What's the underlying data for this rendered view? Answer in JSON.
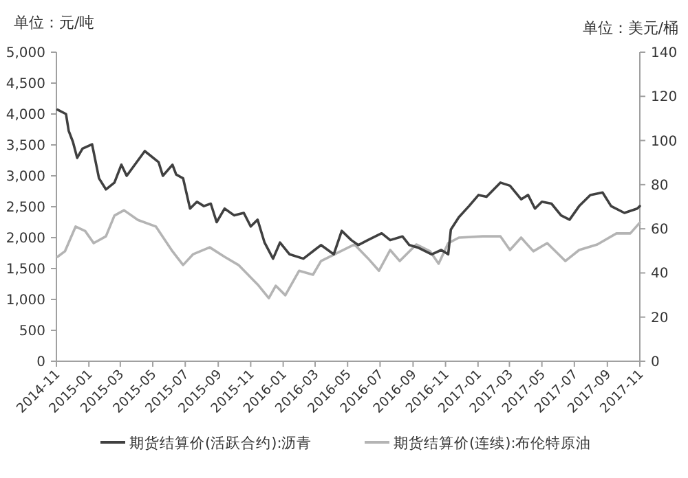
{
  "chart_data": {
    "type": "line",
    "ylabel": "单位：元/吨",
    "y2label": "单位：美元/桶",
    "legend": "bottom",
    "grid": false,
    "marker": "none",
    "line_style": "solid",
    "xlim": [
      "2014-11",
      "2017-11"
    ],
    "xticks": [
      "2014-11",
      "2015-01",
      "2015-03",
      "2015-05",
      "2015-07",
      "2015-09",
      "2015-11",
      "2016-01",
      "2016-03",
      "2016-05",
      "2016-07",
      "2016-09",
      "2016-11",
      "2017-01",
      "2017-03",
      "2017-05",
      "2017-07",
      "2017-09",
      "2017-11"
    ],
    "ylim": [
      0,
      5000
    ],
    "yticks": [
      0,
      500,
      {
        "value": 1000,
        "label": "1,000"
      },
      {
        "value": 1500,
        "label": "1,500"
      },
      {
        "value": 2000,
        "label": "2,000"
      },
      {
        "value": 2500,
        "label": "2,500"
      },
      {
        "value": 3000,
        "label": "3,000"
      },
      {
        "value": 3500,
        "label": "3,500"
      },
      {
        "value": 4000,
        "label": "4,000"
      },
      {
        "value": 4500,
        "label": "4,500"
      },
      {
        "value": 5000,
        "label": "5,000"
      }
    ],
    "y2lim": [
      0,
      140
    ],
    "y2ticks": [
      0,
      20,
      40,
      60,
      80,
      100,
      120,
      140
    ],
    "series": [
      {
        "name": "期货结算价(活跃合约):沥青",
        "color": "#404040",
        "x": [
          "2014-11-03",
          "2014-11-19",
          "2014-11-24",
          "2014-12-02",
          "2014-12-10",
          "2014-12-20",
          "2015-01-07",
          "2015-01-20",
          "2015-02-02",
          "2015-02-18",
          "2015-03-03",
          "2015-03-13",
          "2015-04-16",
          "2015-05-12",
          "2015-05-20",
          "2015-06-07",
          "2015-06-14",
          "2015-06-27",
          "2015-07-10",
          "2015-07-23",
          "2015-08-05",
          "2015-08-18",
          "2015-08-29",
          "2015-09-13",
          "2015-10-01",
          "2015-10-19",
          "2015-11-01",
          "2015-11-14",
          "2015-11-27",
          "2015-12-13",
          "2015-12-26",
          "2016-01-13",
          "2016-02-08",
          "2016-02-29",
          "2016-03-12",
          "2016-04-05",
          "2016-04-20",
          "2016-05-08",
          "2016-05-21",
          "2016-06-08",
          "2016-07-04",
          "2016-07-20",
          "2016-08-12",
          "2016-08-25",
          "2016-09-10",
          "2016-10-06",
          "2016-10-24",
          "2016-11-06",
          "2016-11-11",
          "2016-11-26",
          "2016-12-15",
          "2017-01-02",
          "2017-01-17",
          "2017-02-12",
          "2017-03-02",
          "2017-03-23",
          "2017-04-05",
          "2017-04-18",
          "2017-05-01",
          "2017-05-19",
          "2017-06-06",
          "2017-06-22",
          "2017-07-10",
          "2017-07-31",
          "2017-08-23",
          "2017-09-08",
          "2017-10-03",
          "2017-10-27",
          "2017-11-01"
        ],
        "values": [
          4070,
          4000,
          3730,
          3550,
          3290,
          3440,
          3510,
          2960,
          2780,
          2890,
          3180,
          3000,
          3400,
          3220,
          3000,
          3180,
          3020,
          2960,
          2470,
          2580,
          2510,
          2550,
          2250,
          2470,
          2360,
          2400,
          2180,
          2290,
          1920,
          1660,
          1920,
          1730,
          1660,
          1800,
          1880,
          1730,
          2110,
          1960,
          1880,
          1960,
          2070,
          1960,
          2020,
          1880,
          1840,
          1730,
          1800,
          1730,
          2130,
          2330,
          2510,
          2690,
          2660,
          2890,
          2840,
          2620,
          2690,
          2470,
          2580,
          2550,
          2360,
          2290,
          2510,
          2690,
          2730,
          2510,
          2400,
          2470,
          2510
        ]
      },
      {
        "name": "期货结算价(连续):布伦特原油",
        "color": "#b4b4b4",
        "axis": "y2",
        "x": [
          "2014-11-03",
          "2014-11-17",
          "2014-12-07",
          "2014-12-25",
          "2015-01-10",
          "2015-02-02",
          "2015-02-18",
          "2015-03-08",
          "2015-04-03",
          "2015-05-07",
          "2015-06-07",
          "2015-06-27",
          "2015-07-16",
          "2015-08-16",
          "2015-09-13",
          "2015-10-09",
          "2015-11-14",
          "2015-12-05",
          "2015-12-18",
          "2016-01-05",
          "2016-01-31",
          "2016-02-26",
          "2016-03-12",
          "2016-04-18",
          "2016-05-14",
          "2016-06-08",
          "2016-06-29",
          "2016-07-20",
          "2016-08-07",
          "2016-09-07",
          "2016-10-03",
          "2016-10-19",
          "2016-11-06",
          "2016-11-26",
          "2017-01-10",
          "2017-02-12",
          "2017-03-02",
          "2017-03-23",
          "2017-04-15",
          "2017-05-11",
          "2017-06-14",
          "2017-07-10",
          "2017-08-13",
          "2017-09-18",
          "2017-10-14",
          "2017-11-01"
        ],
        "values": [
          47.3,
          49.8,
          61,
          59,
          53.5,
          56.6,
          66,
          68.4,
          64,
          61,
          49.8,
          43.6,
          48.5,
          51.6,
          47.3,
          43.6,
          34.8,
          28.6,
          34.2,
          29.9,
          41,
          39.2,
          45.4,
          49.8,
          52.9,
          46.7,
          41,
          50.4,
          45.4,
          52.9,
          49.8,
          44.2,
          53.5,
          56,
          56.6,
          56.6,
          50.4,
          56,
          49.8,
          53.5,
          45.4,
          50.4,
          52.9,
          57.9,
          57.9,
          62.8
        ]
      }
    ]
  }
}
